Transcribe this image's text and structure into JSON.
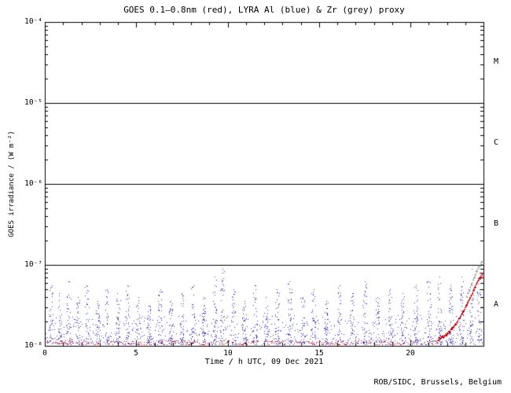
{
  "footer": "ROB/SIDC, Brussels, Belgium",
  "chart_data": {
    "type": "scatter",
    "title": "GOES 0.1–0.8nm (red), LYRA Al (blue) & Zr (grey) proxy",
    "xlabel": "Time / h UTC, 09 Dec 2021",
    "ylabel": "GOES irradiance / (W m⁻²)",
    "xlim": [
      0,
      24
    ],
    "x_major_ticks": [
      0,
      5,
      10,
      15,
      20
    ],
    "x_minor_step": 1,
    "y_log_range": [
      -8,
      -4
    ],
    "y_ticks": [
      {
        "exp": -8,
        "label": "10⁻⁸"
      },
      {
        "exp": -7,
        "label": "10⁻⁷"
      },
      {
        "exp": -6,
        "label": "10⁻⁶"
      },
      {
        "exp": -5,
        "label": "10⁻⁵"
      },
      {
        "exp": -4,
        "label": "10⁻⁴"
      }
    ],
    "flare_class_lines_exp": [
      -7,
      -6,
      -5
    ],
    "flare_class_labels": [
      {
        "label": "M",
        "center_exp": -4.5
      },
      {
        "label": "C",
        "center_exp": -5.5
      },
      {
        "label": "B",
        "center_exp": -6.5
      },
      {
        "label": "A",
        "center_exp": -7.5
      }
    ],
    "grid": false,
    "legend": "encoded in title",
    "seed": 1337,
    "series": [
      {
        "name": "GOES 0.1-0.8nm",
        "color": "#cc0000",
        "baseline": {
          "x_start": 0,
          "x_end": 21.6,
          "exp_min": -8.0,
          "exp_max": -7.93,
          "density": 0.55,
          "step": 0.03
        },
        "rise": [
          [
            21.5,
            -7.92
          ],
          [
            22.0,
            -7.85
          ],
          [
            22.5,
            -7.72
          ],
          [
            23.0,
            -7.52
          ],
          [
            23.4,
            -7.33
          ],
          [
            23.7,
            -7.18
          ],
          [
            24.0,
            -7.09
          ]
        ]
      },
      {
        "name": "LYRA Al proxy",
        "color": "#3333bb",
        "baseline": {
          "x_start": 0,
          "x_end": 24,
          "exp_min": -8.0,
          "exp_max": -7.62,
          "density": 0.85,
          "step": 0.02
        },
        "spikes": [
          [
            0.35,
            -7.25
          ],
          [
            0.8,
            -7.35
          ],
          [
            1.3,
            -7.2
          ],
          [
            1.8,
            -7.4
          ],
          [
            2.3,
            -7.25
          ],
          [
            2.9,
            -7.45
          ],
          [
            3.4,
            -7.3
          ],
          [
            4.0,
            -7.35
          ],
          [
            4.5,
            -7.25
          ],
          [
            5.1,
            -7.4
          ],
          [
            5.7,
            -7.5
          ],
          [
            6.3,
            -7.3
          ],
          [
            6.9,
            -7.45
          ],
          [
            7.5,
            -7.35
          ],
          [
            8.1,
            -7.25
          ],
          [
            8.7,
            -7.4
          ],
          [
            9.3,
            -7.15
          ],
          [
            9.7,
            -7.05
          ],
          [
            10.3,
            -7.3
          ],
          [
            10.9,
            -7.45
          ],
          [
            11.5,
            -7.25
          ],
          [
            12.1,
            -7.4
          ],
          [
            12.7,
            -7.3
          ],
          [
            13.4,
            -7.2
          ],
          [
            14.1,
            -7.4
          ],
          [
            14.7,
            -7.3
          ],
          [
            15.4,
            -7.45
          ],
          [
            16.1,
            -7.25
          ],
          [
            16.8,
            -7.35
          ],
          [
            17.5,
            -7.2
          ],
          [
            18.2,
            -7.4
          ],
          [
            18.9,
            -7.3
          ],
          [
            19.6,
            -7.35
          ],
          [
            20.3,
            -7.25
          ],
          [
            21.0,
            -7.2
          ],
          [
            21.6,
            -7.15
          ],
          [
            22.2,
            -7.25
          ],
          [
            22.8,
            -7.15
          ],
          [
            23.35,
            -7.05
          ],
          [
            23.75,
            -7.1
          ]
        ]
      },
      {
        "name": "LYRA Zr proxy",
        "color": "#9a9a9a",
        "rise": [
          [
            23.05,
            -7.4
          ],
          [
            23.3,
            -7.25
          ],
          [
            23.6,
            -7.08
          ],
          [
            23.85,
            -6.98
          ],
          [
            24.0,
            -6.95
          ]
        ]
      }
    ]
  }
}
